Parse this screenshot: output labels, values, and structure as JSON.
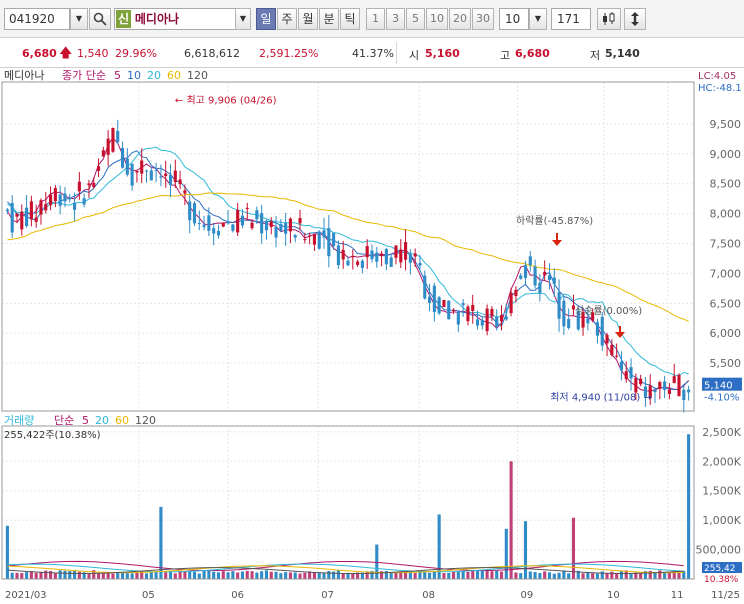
{
  "toolbar": {
    "code": "041920",
    "stock_badge": "신",
    "stock_name": "메디아나",
    "periods": [
      "일",
      "주",
      "월",
      "분",
      "틱"
    ],
    "active_period": "일",
    "intervals": [
      "1",
      "3",
      "5",
      "10",
      "20",
      "30"
    ],
    "ma_period": "10",
    "count": "171"
  },
  "quote": {
    "price": "6,680",
    "change": "1,540",
    "change_pct": "29.96%",
    "volume": "6,618,612",
    "volume_ratio": "2,591.25%",
    "turnover": "41.37%",
    "open_label": "시",
    "open": "5,160",
    "high_label": "고",
    "high": "6,680",
    "low_label": "저",
    "low": "5,140"
  },
  "colors": {
    "up": "#c8102e",
    "down": "#2f8cc8",
    "ma5": "#b0176a",
    "ma10": "#2c6ec4",
    "ma20": "#2fb9d8",
    "ma60": "#e8b800",
    "ma120": "#555555"
  },
  "chart_data": {
    "type": "candlestick",
    "price_panel": {
      "stock_label": "메디아나",
      "ma_header": "종가 단순",
      "ma_periods": [
        "5",
        "10",
        "20",
        "60",
        "120"
      ],
      "ylim": [
        4700,
        10200
      ],
      "y_ticks": [
        "5,500",
        "6,000",
        "6,500",
        "7,000",
        "7,500",
        "8,000",
        "8,500",
        "9,000",
        "9,500"
      ],
      "right_labels": [
        "LC:4.05",
        "HC:-48.1"
      ],
      "current_price": "5,140",
      "current_pct": "-4.10%",
      "annotations": {
        "high": "최고 9,906 (04/26)",
        "low": "최저 4,940 (11/08)",
        "drop": "하락률(-45.87%)",
        "rise": "상승률(0.00%)"
      },
      "series": [
        {
          "name": "5",
          "values": [
            8047,
            7894,
            7856,
            7945,
            8017,
            7977,
            8044,
            8200,
            8234,
            8335,
            8352,
            8357,
            8292,
            8263,
            8246,
            8319,
            8391,
            8412,
            8584,
            8815,
            8912,
            9150,
            9266,
            9175,
            8991,
            8785,
            8717,
            8725,
            8769,
            8830,
            8773,
            8755,
            8642,
            8580,
            8480,
            8474,
            8336,
            8248,
            8113,
            8010,
            7927,
            7829,
            7810,
            7827,
            7843,
            7842,
            7858,
            7850,
            7885,
            7936,
            7902,
            7893,
            7860,
            7840,
            7834,
            7814,
            7788,
            7697,
            7723,
            7735,
            7727,
            7689,
            7592,
            7623,
            7657,
            7662,
            7638,
            7536,
            7423,
            7358,
            7346,
            7262,
            7289,
            7273,
            7286,
            7299,
            7308,
            7318,
            7327,
            7302,
            7324,
            7354,
            7375,
            7391,
            7314,
            7149,
            6983,
            6785,
            6638,
            6484,
            6384,
            6372,
            6336,
            6360,
            6349,
            6372,
            6344,
            6343,
            6264,
            6209,
            6187,
            6165,
            6082,
            6177,
            6460,
            6738,
            6902,
            7107,
            7127,
            6970,
            6976,
            6892,
            6882,
            6852,
            6638,
            6444,
            6338,
            6290,
            6293,
            6268,
            6271,
            6262,
            6218,
            6120,
            5930,
            5787,
            5644,
            5554,
            5374,
            5269,
            5175,
            5124,
            5059,
            5040,
            5032,
            5057,
            5081,
            5100,
            5087,
            5061,
            5066,
            5121,
            5213
          ]
        },
        {
          "name": "10",
          "values": [
            8196,
            8118,
            7975,
            7982,
            7950,
            7906,
            7901,
            8016,
            8144,
            8203,
            8167,
            8201,
            8246,
            8251,
            8297,
            8335,
            8374,
            8353,
            8423,
            8530,
            8616,
            8771,
            8840,
            8880,
            8916,
            8930,
            9018,
            9050,
            8952,
            8932,
            8807,
            8751,
            8761,
            8708,
            8659,
            8549,
            8528,
            8447,
            8346,
            8245,
            8200,
            8078,
            8029,
            7971,
            7948,
            7893,
            7864,
            7852,
            7860,
            7890,
            7889,
            7876,
            7868,
            7856,
            7872,
            7869,
            7841,
            7807,
            7770,
            7785,
            7778,
            7739,
            7646,
            7673,
            7679,
            7691,
            7660,
            7567,
            7557,
            7505,
            7495,
            7474,
            7424,
            7331,
            7325,
            7322,
            7283,
            7304,
            7300,
            7294,
            7325,
            7330,
            7351,
            7359,
            7308,
            7204,
            7052,
            6879,
            6696,
            6567,
            6487,
            6393,
            6386,
            6385,
            6375,
            6346,
            6340,
            6296,
            6315,
            6273,
            6271,
            6265,
            6175,
            6113,
            6327,
            6630,
            6685,
            6763,
            6816,
            6720,
            6719,
            6785,
            6986,
            7013,
            6821,
            6710,
            6615,
            6586,
            6519,
            6456,
            6413,
            6301,
            6214,
            6121,
            6060,
            5946,
            5821,
            5738,
            5560,
            5438,
            5305,
            5263,
            5202,
            5151,
            5134,
            5076,
            5084,
            5091,
            5070,
            5058,
            5061,
            5138,
            5200
          ]
        },
        {
          "name": "20",
          "values": [
            8156,
            8110,
            8013,
            8021,
            8025,
            8004,
            8008,
            8070,
            8103,
            8156,
            8179,
            8182,
            8147,
            8143,
            8176,
            8185,
            8189,
            8246,
            8260,
            8349,
            8424,
            8511,
            8574,
            8638,
            8703,
            8781,
            8859,
            8968,
            9052,
            9089,
            9091,
            9111,
            9062,
            9054,
            9037,
            8995,
            8904,
            8780,
            8731,
            8678,
            8614,
            8558,
            8429,
            8325,
            8301,
            8247,
            8138,
            8089,
            8063,
            8038,
            8012,
            7988,
            7979,
            7944,
            7912,
            7883,
            7867,
            7853,
            7844,
            7849,
            7844,
            7818,
            7798,
            7803,
            7766,
            7762,
            7746,
            7733,
            7682,
            7673,
            7638,
            7598,
            7560,
            7550,
            7520,
            7540,
            7540,
            7523,
            7496,
            7461,
            7444,
            7400,
            7367,
            7340,
            7338,
            7319,
            7281,
            7179,
            7106,
            7000,
            6867,
            6788,
            6654,
            6563,
            6502,
            6424,
            6360,
            6342,
            6349,
            6326,
            6300,
            6317,
            6268,
            6292,
            6369,
            6482,
            6539,
            6604,
            6658,
            6661,
            6669,
            6666,
            6661,
            6557,
            6523,
            6535,
            6654,
            6636,
            6542,
            6576,
            6576,
            6520,
            6528,
            6511,
            6525,
            6358,
            6232,
            6186,
            5994,
            5866,
            5790,
            5688,
            5608,
            5547,
            5479,
            5457,
            5401,
            5355,
            5337,
            5299,
            5295,
            5344,
            5325
          ]
        },
        {
          "name": "60",
          "values": [
            7560,
            7572,
            7584,
            7602,
            7630,
            7677,
            7703,
            7720,
            7749,
            7770,
            7800,
            7813,
            7827,
            7849,
            7870,
            7903,
            7939,
            7954,
            7975,
            8002,
            8019,
            8062,
            8098,
            8120,
            8148,
            8166,
            8177,
            8207,
            8223,
            8246,
            8262,
            8283,
            8301,
            8303,
            8299,
            8293,
            8302,
            8317,
            8320,
            8312,
            8318,
            8334,
            8346,
            8337,
            8339,
            8337,
            8330,
            8329,
            8326,
            8328,
            8311,
            8308,
            8295,
            8284,
            8282,
            8279,
            8267,
            8251,
            8247,
            8224,
            8211,
            8181,
            8144,
            8121,
            8097,
            8072,
            8062,
            8053,
            8047,
            8011,
            7974,
            7950,
            7915,
            7902,
            7874,
            7853,
            7843,
            7831,
            7812,
            7787,
            7788,
            7766,
            7742,
            7731,
            7713,
            7697,
            7664,
            7627,
            7609,
            7601,
            7594,
            7566,
            7517,
            7471,
            7444,
            7424,
            7407,
            7393,
            7354,
            7329,
            7311,
            7297,
            7267,
            7238,
            7217,
            7198,
            7182,
            7174,
            7159,
            7133,
            7118,
            7094,
            7089,
            7070,
            7068,
            7063,
            7044,
            7014,
            6982,
            6960,
            6937,
            6913,
            6884,
            6857,
            6844,
            6815,
            6801,
            6776,
            6735,
            6689,
            6658,
            6613,
            6566,
            6531,
            6493,
            6466,
            6432,
            6391,
            6348,
            6298,
            6259,
            6236,
            6198
          ]
        },
        {
          "name": "120",
          "values": [
            null,
            null,
            null,
            null,
            null,
            null,
            null,
            null,
            null,
            null,
            null,
            null,
            null,
            null,
            null,
            null,
            null,
            null,
            null,
            null,
            null,
            null,
            null,
            null,
            null,
            null,
            null,
            null,
            null,
            null,
            null,
            null,
            null,
            null,
            null,
            null,
            null,
            null,
            null,
            null,
            null,
            null,
            null,
            null,
            null,
            null,
            null,
            null,
            null,
            null,
            null,
            null,
            null,
            null,
            null,
            null,
            null,
            null,
            null,
            null,
            null,
            null,
            null,
            null,
            null,
            null,
            null,
            null,
            null,
            null,
            null,
            null,
            null,
            null,
            null,
            null,
            null,
            null,
            null,
            null,
            null,
            null,
            null,
            null,
            null,
            null,
            null,
            null,
            null,
            null,
            null,
            null,
            null,
            null,
            null,
            null,
            null,
            null,
            null,
            null,
            null,
            null,
            null,
            null,
            null,
            null,
            null,
            null,
            null,
            null,
            null,
            null,
            null,
            null,
            null,
            null,
            null,
            null,
            null,
            null,
            null,
            null,
            null,
            null,
            null,
            null,
            null,
            null,
            null,
            null,
            null,
            null,
            null,
            null,
            null,
            null,
            null,
            null,
            null,
            null,
            null,
            null,
            null,
            null,
            null
          ]
        }
      ]
    },
    "volume_panel": {
      "label": "거래량",
      "ma_header": "단순",
      "ma_periods": [
        "5",
        "20",
        "60",
        "120"
      ],
      "current": "255,422주(10.38%)",
      "ylim": [
        0,
        2600000
      ],
      "y_ticks": [
        "500,000",
        "1,000K",
        "1,500K",
        "2,000K",
        "2,500K"
      ],
      "right_labels": [
        "255,42",
        "10.38%"
      ]
    },
    "x_labels": [
      "2021/03",
      "05",
      "06",
      "07",
      "08",
      "09",
      "10",
      "11",
      "11/25"
    ]
  }
}
